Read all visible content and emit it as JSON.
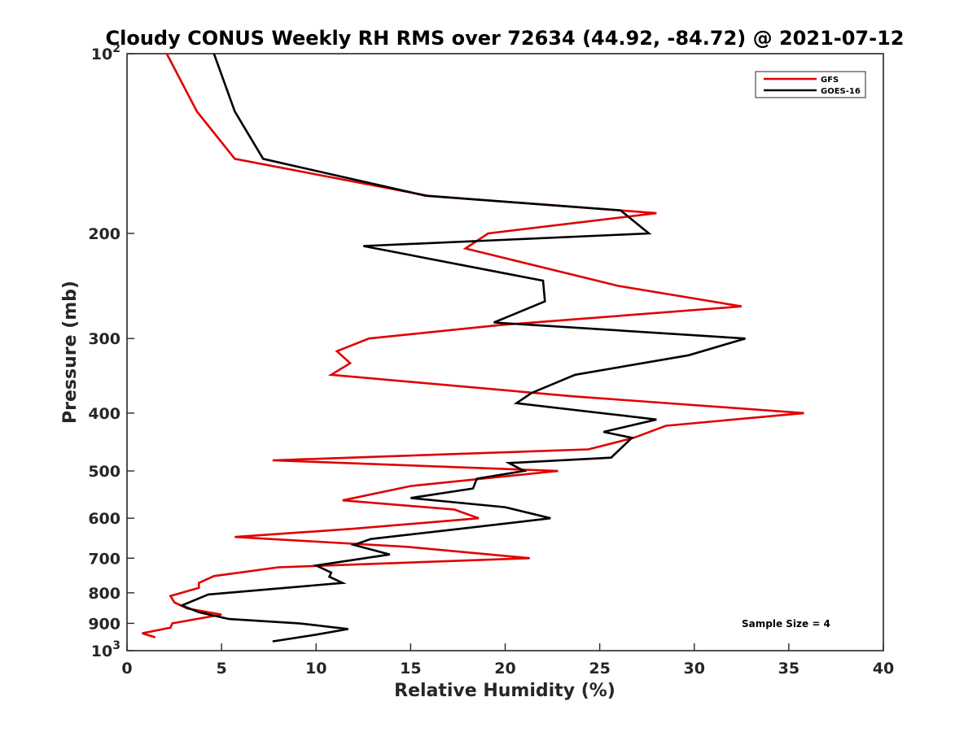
{
  "chart_data": {
    "type": "line",
    "title": "Cloudy CONUS Weekly RH RMS over 72634 (44.92, -84.72) @ 2021-07-12",
    "xlabel": "Relative Humidity (%)",
    "ylabel": "Pressure (mb)",
    "xlim": [
      0,
      40
    ],
    "ylim": [
      100,
      1000
    ],
    "y_scale": "log",
    "y_reversed": true,
    "x_ticks": [
      "0",
      "5",
      "10",
      "15",
      "20",
      "25",
      "30",
      "35",
      "40"
    ],
    "y_ticks": [
      {
        "value": 100,
        "base": "10",
        "exp": "2"
      },
      {
        "value": 200,
        "label": "200"
      },
      {
        "value": 300,
        "label": "300"
      },
      {
        "value": 400,
        "label": "400"
      },
      {
        "value": 500,
        "label": "500"
      },
      {
        "value": 600,
        "label": "600"
      },
      {
        "value": 700,
        "label": "700"
      },
      {
        "value": 800,
        "label": "800"
      },
      {
        "value": 900,
        "label": "900"
      },
      {
        "value": 1000,
        "base": "10",
        "exp": "3"
      }
    ],
    "legend_position": "top-right",
    "grid": false,
    "annotation": "Sample Size = 4",
    "series": [
      {
        "name": "GFS",
        "color": "#e00000",
        "points": [
          [
            2.1,
            100
          ],
          [
            3.7,
            125
          ],
          [
            5.7,
            150
          ],
          [
            15.9,
            173
          ],
          [
            28.0,
            185
          ],
          [
            19.1,
            200
          ],
          [
            17.9,
            212
          ],
          [
            26.0,
            245
          ],
          [
            32.5,
            265
          ],
          [
            19.6,
            285
          ],
          [
            12.8,
            300
          ],
          [
            11.1,
            315
          ],
          [
            11.8,
            330
          ],
          [
            10.8,
            345
          ],
          [
            23.6,
            375
          ],
          [
            35.8,
            400
          ],
          [
            28.5,
            420
          ],
          [
            26.8,
            440
          ],
          [
            24.4,
            460
          ],
          [
            7.7,
            480
          ],
          [
            22.8,
            500
          ],
          [
            15.0,
            530
          ],
          [
            11.4,
            560
          ],
          [
            17.3,
            580
          ],
          [
            18.6,
            600
          ],
          [
            11.9,
            625
          ],
          [
            5.7,
            645
          ],
          [
            14.8,
            670
          ],
          [
            21.3,
            700
          ],
          [
            8.0,
            725
          ],
          [
            4.6,
            750
          ],
          [
            3.8,
            770
          ],
          [
            3.8,
            785
          ],
          [
            2.3,
            810
          ],
          [
            2.5,
            830
          ],
          [
            3.2,
            850
          ],
          [
            5.0,
            870
          ],
          [
            2.4,
            900
          ],
          [
            2.3,
            915
          ],
          [
            0.8,
            935
          ],
          [
            1.5,
            950
          ]
        ]
      },
      {
        "name": "GOES-16",
        "color": "#000000",
        "points": [
          [
            4.6,
            100
          ],
          [
            5.7,
            125
          ],
          [
            7.2,
            150
          ],
          [
            15.8,
            173
          ],
          [
            26.1,
            183
          ],
          [
            27.6,
            200
          ],
          [
            12.5,
            210
          ],
          [
            22.0,
            240
          ],
          [
            22.1,
            260
          ],
          [
            19.4,
            282
          ],
          [
            32.7,
            300
          ],
          [
            29.7,
            320
          ],
          [
            23.7,
            345
          ],
          [
            21.4,
            370
          ],
          [
            20.6,
            385
          ],
          [
            28.0,
            410
          ],
          [
            25.2,
            430
          ],
          [
            26.7,
            440
          ],
          [
            25.6,
            475
          ],
          [
            20.2,
            485
          ],
          [
            21.0,
            500
          ],
          [
            18.5,
            515
          ],
          [
            18.3,
            535
          ],
          [
            15.0,
            555
          ],
          [
            20.0,
            575
          ],
          [
            22.4,
            600
          ],
          [
            17.6,
            625
          ],
          [
            12.9,
            650
          ],
          [
            12.0,
            665
          ],
          [
            13.9,
            690
          ],
          [
            10.0,
            720
          ],
          [
            10.8,
            740
          ],
          [
            10.7,
            752
          ],
          [
            11.4,
            770
          ],
          [
            4.3,
            805
          ],
          [
            2.9,
            840
          ],
          [
            3.8,
            862
          ],
          [
            5.4,
            885
          ],
          [
            9.1,
            900
          ],
          [
            11.7,
            920
          ],
          [
            10.0,
            940
          ],
          [
            7.7,
            965
          ]
        ]
      }
    ]
  }
}
